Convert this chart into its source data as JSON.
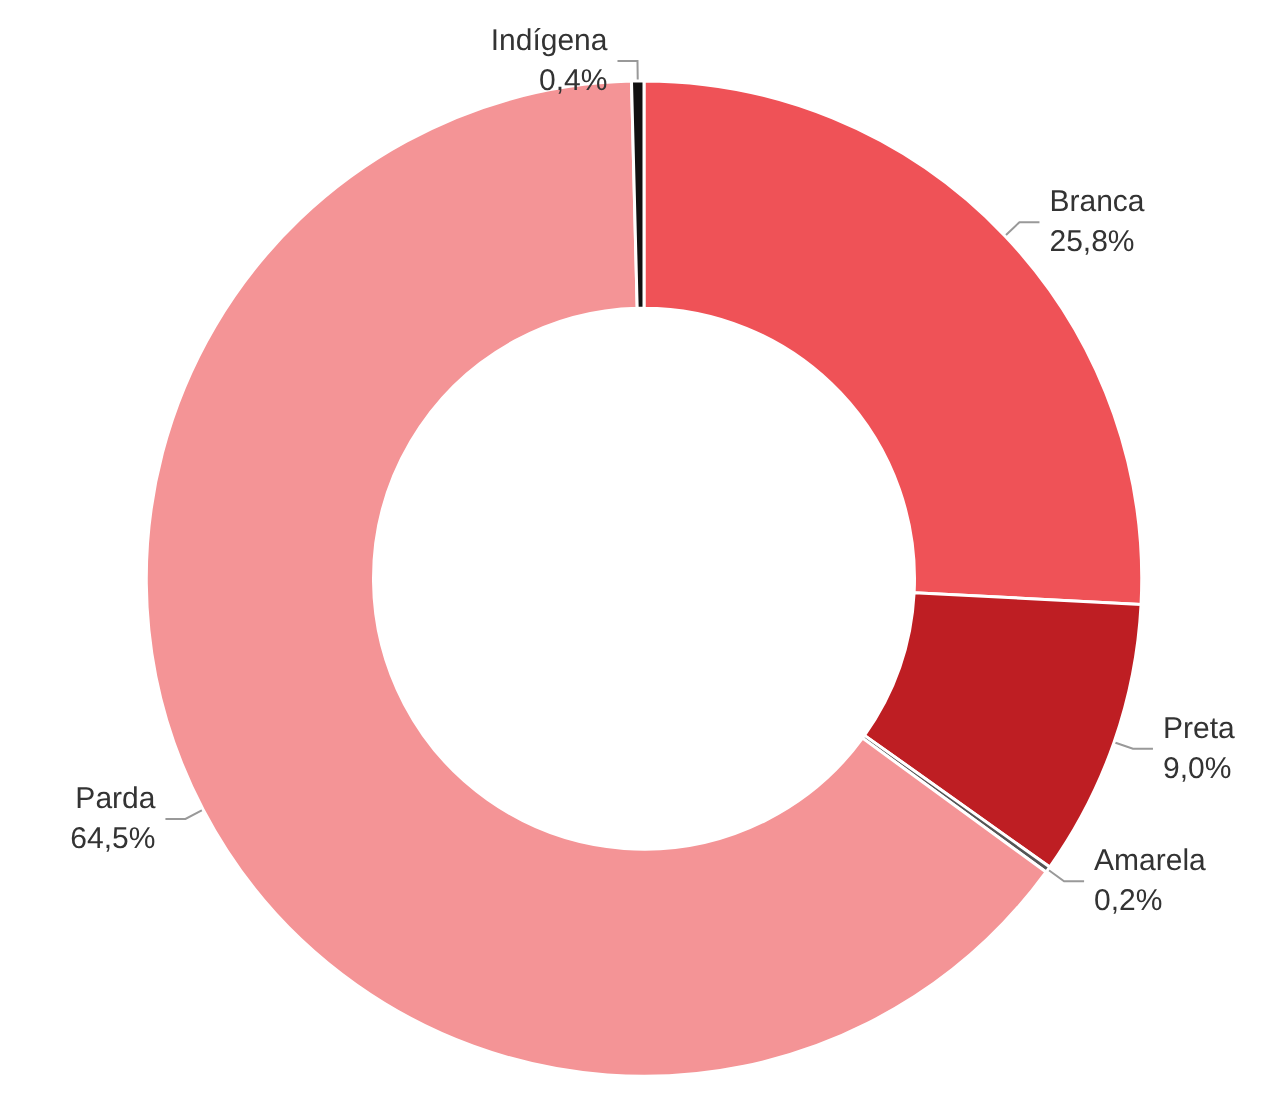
{
  "chart_data": {
    "type": "donut",
    "categories": [
      "Branca",
      "Preta",
      "Amarela",
      "Parda",
      "Indígena"
    ],
    "values": [
      25.8,
      9.0,
      0.2,
      64.5,
      0.4
    ],
    "value_labels": [
      "25,8%",
      "9,0%",
      "0,2%",
      "64,5%",
      "0,4%"
    ],
    "colors": [
      "#ef5257",
      "#be1e23",
      "#555555",
      "#f49496",
      "#111111"
    ],
    "legend": false
  }
}
